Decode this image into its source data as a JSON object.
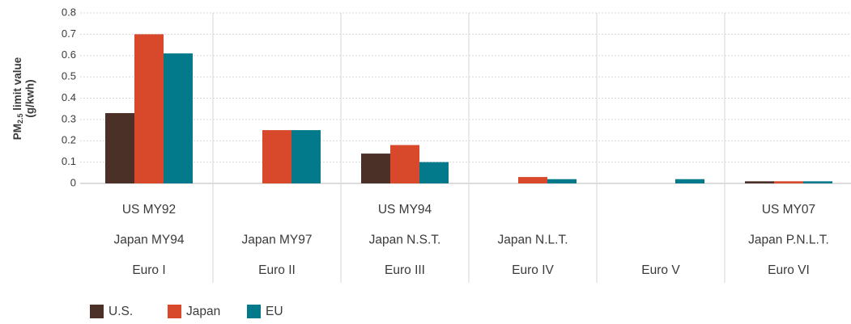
{
  "chart_data": {
    "type": "bar",
    "ylabel": {
      "main": "PM",
      "subscript": "2.5",
      "rest": " limit value",
      "line2": "(g/kwh)"
    },
    "categories": [
      [
        "US MY92",
        "Japan MY94",
        "Euro I"
      ],
      [
        null,
        "Japan MY97",
        "Euro II"
      ],
      [
        "US MY94",
        "Japan N.S.T.",
        "Euro III"
      ],
      [
        null,
        "Japan N.L.T.",
        "Euro IV"
      ],
      [
        null,
        null,
        "Euro V"
      ],
      [
        "US MY07",
        "Japan P.N.L.T.",
        "Euro VI"
      ]
    ],
    "series": [
      {
        "name": "U.S.",
        "color": "#4b3028",
        "values": [
          0.33,
          null,
          0.14,
          null,
          null,
          0.01
        ]
      },
      {
        "name": "Japan",
        "color": "#d8482b",
        "values": [
          0.7,
          0.25,
          0.18,
          0.03,
          null,
          0.01
        ]
      },
      {
        "name": "EU",
        "color": "#037a8b",
        "values": [
          0.61,
          0.25,
          0.1,
          0.02,
          0.02,
          0.01
        ]
      }
    ],
    "ylim": [
      0,
      0.8
    ],
    "yticks": [
      0,
      0.1,
      0.2,
      0.3,
      0.4,
      0.5,
      0.6,
      0.7,
      0.8
    ],
    "grid": true
  }
}
